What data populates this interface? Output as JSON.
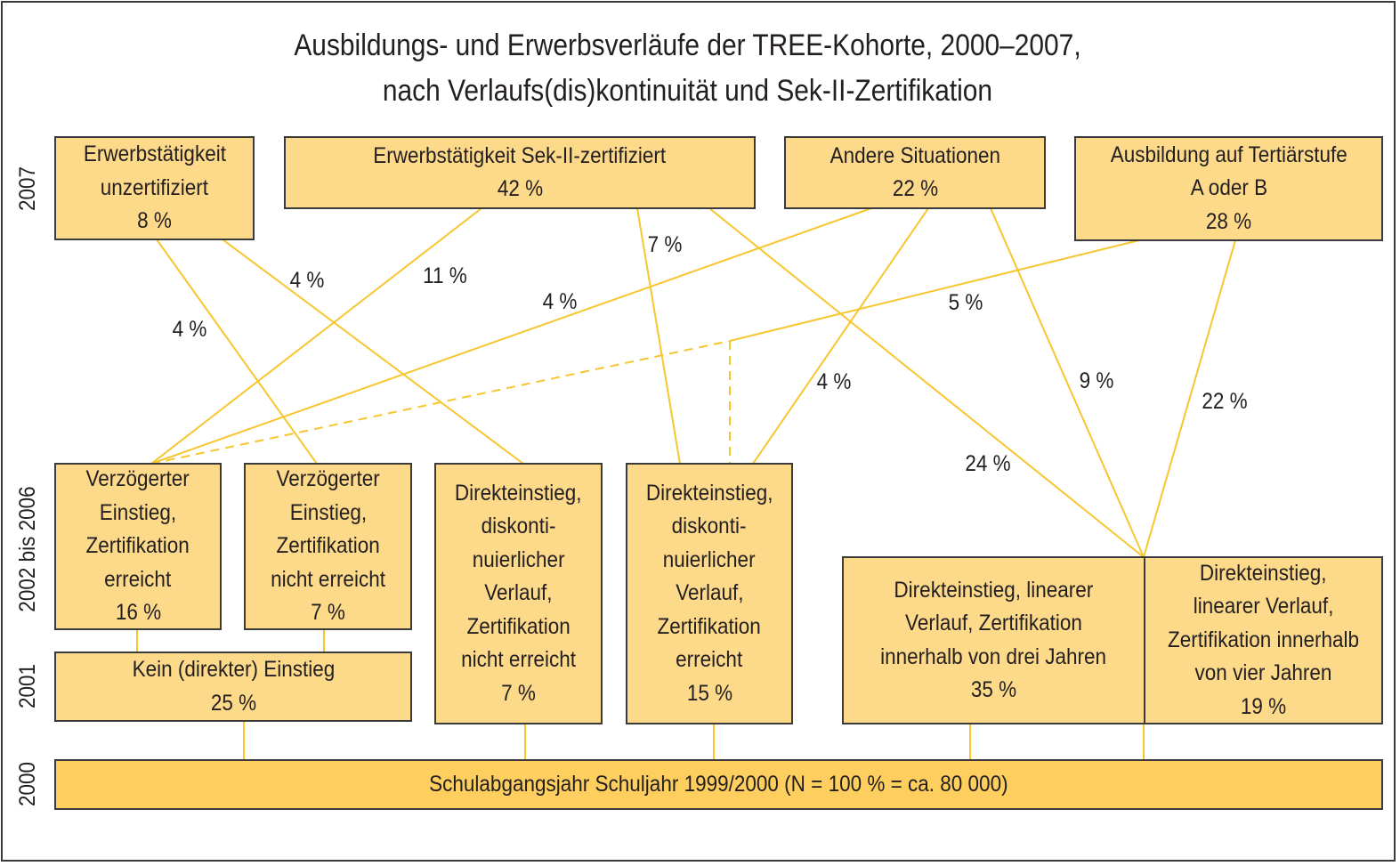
{
  "title": {
    "line1": "Ausbildungs- und Erwerbsverläufe der TREE-Kohorte, 2000–2007,",
    "line2": "nach Verlaufs(dis)kontinuität und Sek-II-Zertifikation"
  },
  "year_labels": {
    "y2007": "2007",
    "y2002_2006": "2002 bis 2006",
    "y2001": "2001",
    "y2000": "2000"
  },
  "boxes": {
    "erwerb_unzert": {
      "lines": [
        "Erwerbstätigkeit",
        "unzertifiziert"
      ],
      "value": "8 %"
    },
    "erwerb_zert": {
      "lines": [
        "Erwerbstätigkeit Sek-II-zertifiziert"
      ],
      "value": "42 %"
    },
    "andere": {
      "lines": [
        "Andere Situationen"
      ],
      "value": "22 %"
    },
    "tertiaer": {
      "lines": [
        "Ausbildung auf Tertiärstufe",
        "A oder B"
      ],
      "value": "28 %"
    },
    "verz_zert": {
      "lines": [
        "Verzögerter",
        "Einstieg,",
        "Zertifikation",
        "erreicht"
      ],
      "value": "16 %"
    },
    "verz_nicht": {
      "lines": [
        "Verzögerter",
        "Einstieg,",
        "Zertifikation",
        "nicht erreicht"
      ],
      "value": "7 %"
    },
    "direkt_disk_nicht": {
      "lines": [
        "Direkteinstieg,",
        "diskonti-",
        "nuierlicher",
        "Verlauf,",
        "Zertifikation",
        "nicht erreicht"
      ],
      "value": "7 %"
    },
    "direkt_disk_zert": {
      "lines": [
        "Direkteinstieg,",
        "diskonti-",
        "nuierlicher",
        "Verlauf,",
        "Zertifikation",
        "erreicht"
      ],
      "value": "15 %"
    },
    "direkt_lin_3": {
      "lines": [
        "Direkteinstieg, linearer",
        "Verlauf, Zertifikation",
        "innerhalb von drei Jahren"
      ],
      "value": "35 %"
    },
    "direkt_lin_4": {
      "lines": [
        "Direkteinstieg,",
        "linearer Verlauf,",
        "Zertifikation innerhalb",
        "von vier Jahren"
      ],
      "value": "19 %"
    },
    "kein_einstieg": {
      "lines": [
        "Kein (direkter) Einstieg"
      ],
      "value": "25 %"
    },
    "schulabgang": {
      "lines": [
        "Schulabgangsjahr Schuljahr 1999/2000 (N = 100 % = ca. 80 000)"
      ],
      "value": ""
    }
  },
  "flows": [
    {
      "from": "verz_zert",
      "to": "erwerb_zert",
      "value": "11 %"
    },
    {
      "from": "verz_nicht",
      "to": "erwerb_unzert",
      "value": "4 %"
    },
    {
      "from": "direkt_disk_nicht",
      "to": "erwerb_unzert",
      "value": "4 %"
    },
    {
      "from": "verz_zert",
      "to": "andere",
      "value": "4 %"
    },
    {
      "from": "direkt_disk_zert",
      "to": "erwerb_zert",
      "value": "7 %"
    },
    {
      "from": "direkt_disk_zert",
      "to": "andere",
      "value": "4 %"
    },
    {
      "from": "direkt_lin",
      "to": "tertiaer",
      "value": "22 %"
    },
    {
      "from": "direkt_lin",
      "to": "andere",
      "value": "9 %"
    },
    {
      "from": "direkt_lin",
      "to": "erwerb_zert",
      "value": "24 %"
    },
    {
      "from": "verz_zert + direkt_disk_zert",
      "to": "tertiaer",
      "value": "5 %"
    }
  ],
  "colors": {
    "box_fill": "#fdd98a",
    "base_fill": "#fecf5e",
    "line": "#f7c62f",
    "border": "#3a3a3a"
  }
}
